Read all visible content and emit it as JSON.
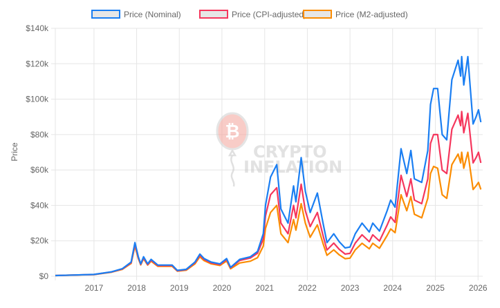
{
  "chart_data": {
    "type": "line",
    "title": "",
    "xlabel": "",
    "ylabel": "Price",
    "xlim": [
      "2016-02-05",
      "2026-02-10"
    ],
    "ylim": [
      0,
      140000
    ],
    "grid": true,
    "legend_placement": "top",
    "x_ticks": [
      "2017",
      "2018",
      "2019",
      "2020",
      "2021",
      "2022",
      "2023",
      "2024",
      "2025",
      "2026"
    ],
    "y_ticks": [
      0,
      20000,
      40000,
      60000,
      80000,
      100000,
      120000,
      140000
    ],
    "y_tick_labels": [
      "$0",
      "$20k",
      "$40k",
      "$60k",
      "$80k",
      "$100k",
      "$120k",
      "$140k"
    ],
    "watermark": "CRYPTO INFLATION",
    "x": [
      "2016-02-05",
      "2016-07-01",
      "2017-01-01",
      "2017-06-01",
      "2017-09-01",
      "2017-11-15",
      "2017-12-17",
      "2018-01-15",
      "2018-02-05",
      "2018-03-01",
      "2018-04-05",
      "2018-05-05",
      "2018-07-01",
      "2018-11-01",
      "2018-12-15",
      "2019-03-01",
      "2019-05-15",
      "2019-06-26",
      "2019-08-01",
      "2019-10-01",
      "2019-12-15",
      "2020-02-10",
      "2020-03-15",
      "2020-06-01",
      "2020-09-01",
      "2020-11-01",
      "2020-12-20",
      "2021-01-08",
      "2021-02-20",
      "2021-04-14",
      "2021-05-20",
      "2021-07-20",
      "2021-09-05",
      "2021-09-25",
      "2021-11-09",
      "2021-12-15",
      "2022-01-25",
      "2022-03-28",
      "2022-05-15",
      "2022-06-18",
      "2022-08-15",
      "2022-10-01",
      "2022-11-20",
      "2023-01-01",
      "2023-02-15",
      "2023-04-14",
      "2023-06-15",
      "2023-07-15",
      "2023-09-10",
      "2023-11-15",
      "2023-12-15",
      "2024-01-22",
      "2024-03-13",
      "2024-05-01",
      "2024-06-05",
      "2024-07-05",
      "2024-08-05",
      "2024-09-06",
      "2024-10-28",
      "2024-11-20",
      "2024-12-17",
      "2025-01-20",
      "2025-02-28",
      "2025-04-08",
      "2025-05-22",
      "2025-07-14",
      "2025-08-05",
      "2025-08-14",
      "2025-09-01",
      "2025-10-06",
      "2025-11-20",
      "2025-12-15",
      "2026-01-05",
      "2026-01-25"
    ],
    "series": [
      {
        "name": "Price (Nominal)",
        "color": "#1a7ef2",
        "values": [
          400,
          650,
          1000,
          2500,
          4300,
          8000,
          19000,
          11000,
          7000,
          11000,
          7000,
          9500,
          6300,
          6300,
          3300,
          3900,
          8000,
          12500,
          10000,
          8000,
          7000,
          10000,
          5000,
          9500,
          11000,
          14000,
          24000,
          40000,
          56000,
          63000,
          38000,
          30000,
          51000,
          42000,
          67000,
          48000,
          36000,
          47000,
          30000,
          19000,
          24000,
          19500,
          16000,
          16500,
          24000,
          30000,
          25000,
          30000,
          25500,
          37000,
          43000,
          39000,
          72000,
          58000,
          71000,
          55000,
          54000,
          53000,
          71000,
          97000,
          106000,
          106000,
          80000,
          77000,
          111000,
          122000,
          113000,
          124000,
          108000,
          124000,
          86000,
          90000,
          94000,
          87000
        ]
      },
      {
        "name": "Price (CPI-adjusted)",
        "color": "#f5365c",
        "values": [
          400,
          650,
          980,
          2400,
          4100,
          7600,
          18000,
          10500,
          6700,
          10400,
          6600,
          9000,
          6000,
          6000,
          3100,
          3700,
          7600,
          11800,
          9500,
          7500,
          6600,
          9400,
          4700,
          8900,
          10300,
          13000,
          21000,
          34000,
          46000,
          50000,
          30000,
          24000,
          40000,
          33000,
          52000,
          37000,
          28000,
          36000,
          23000,
          14800,
          18700,
          15200,
          12500,
          12900,
          18700,
          23400,
          19500,
          23400,
          19900,
          28900,
          33500,
          30400,
          57000,
          45000,
          55000,
          43000,
          42000,
          41000,
          55000,
          75000,
          80000,
          80000,
          60000,
          58000,
          83000,
          91000,
          85000,
          93000,
          81000,
          92000,
          64000,
          67000,
          70000,
          64000
        ]
      },
      {
        "name": "Price (M2-adjusted)",
        "color": "#fb8c00",
        "values": [
          400,
          640,
          950,
          2300,
          3900,
          7200,
          17000,
          10000,
          6400,
          9900,
          6300,
          8500,
          5600,
          5600,
          2900,
          3400,
          7000,
          11000,
          8800,
          7000,
          6100,
          8600,
          4200,
          7500,
          8500,
          10500,
          17000,
          27000,
          36000,
          40000,
          24000,
          19000,
          32000,
          26000,
          41000,
          30000,
          22000,
          29000,
          18500,
          11800,
          14900,
          12100,
          9900,
          10200,
          14900,
          18600,
          15500,
          18600,
          15800,
          23000,
          26700,
          24600,
          46000,
          37000,
          45000,
          35000,
          34000,
          33000,
          44000,
          58000,
          62000,
          61000,
          46000,
          44000,
          63000,
          69000,
          64000,
          70000,
          61000,
          70000,
          49000,
          51000,
          53000,
          49000
        ]
      }
    ]
  }
}
